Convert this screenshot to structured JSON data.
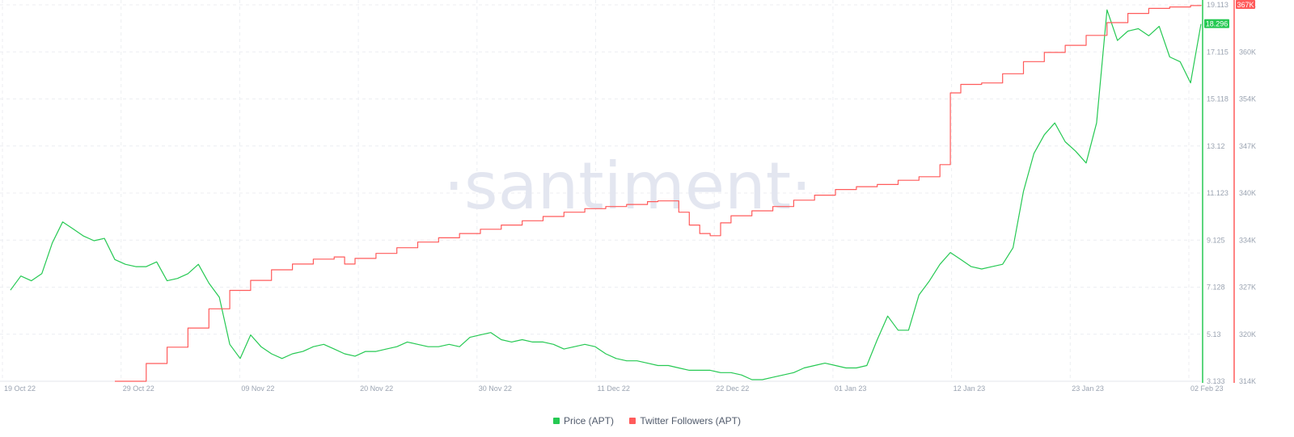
{
  "watermark": "·santiment·",
  "legend": {
    "price_label": "Price (APT)",
    "followers_label": "Twitter Followers (APT)",
    "price_color": "#26c953",
    "followers_color": "#ff5b5b"
  },
  "chart_data": {
    "type": "line",
    "x_ticks": [
      "19 Oct 22",
      "29 Oct 22",
      "09 Nov 22",
      "20 Nov 22",
      "30 Nov 22",
      "11 Dec 22",
      "22 Dec 22",
      "01 Jan 23",
      "12 Jan 23",
      "23 Jan 23",
      "02 Feb 23"
    ],
    "price_axis": {
      "ticks": [
        "19.113",
        "17.115",
        "15.118",
        "13.12",
        "11.123",
        "9.125",
        "7.128",
        "5.13",
        "3.133"
      ],
      "range": [
        3.133,
        19.113
      ],
      "last_value_label": "18.296"
    },
    "followers_axis": {
      "ticks": [
        "367K",
        "360K",
        "354K",
        "347K",
        "340K",
        "334K",
        "327K",
        "320K",
        "314K"
      ],
      "range": [
        314,
        367
      ],
      "last_value_label": "367K"
    },
    "grid": true,
    "legend_position": "bottom-center",
    "series": [
      {
        "name": "Price (APT)",
        "axis": "left",
        "color": "#26c953",
        "points": [
          [
            "2022-10-19",
            7.0
          ],
          [
            "2022-10-20",
            7.6
          ],
          [
            "2022-10-21",
            7.4
          ],
          [
            "2022-10-22",
            7.7
          ],
          [
            "2022-10-23",
            9.0
          ],
          [
            "2022-10-24",
            9.9
          ],
          [
            "2022-10-25",
            9.6
          ],
          [
            "2022-10-26",
            9.3
          ],
          [
            "2022-10-27",
            9.1
          ],
          [
            "2022-10-28",
            9.2
          ],
          [
            "2022-10-29",
            8.3
          ],
          [
            "2022-10-30",
            8.1
          ],
          [
            "2022-10-31",
            8.0
          ],
          [
            "2022-11-01",
            8.0
          ],
          [
            "2022-11-02",
            8.2
          ],
          [
            "2022-11-03",
            7.4
          ],
          [
            "2022-11-04",
            7.5
          ],
          [
            "2022-11-05",
            7.7
          ],
          [
            "2022-11-06",
            8.1
          ],
          [
            "2022-11-07",
            7.3
          ],
          [
            "2022-11-08",
            6.7
          ],
          [
            "2022-11-09",
            4.7
          ],
          [
            "2022-11-10",
            4.1
          ],
          [
            "2022-11-11",
            5.1
          ],
          [
            "2022-11-12",
            4.6
          ],
          [
            "2022-11-13",
            4.3
          ],
          [
            "2022-11-14",
            4.1
          ],
          [
            "2022-11-15",
            4.3
          ],
          [
            "2022-11-16",
            4.4
          ],
          [
            "2022-11-17",
            4.6
          ],
          [
            "2022-11-18",
            4.7
          ],
          [
            "2022-11-19",
            4.5
          ],
          [
            "2022-11-20",
            4.3
          ],
          [
            "2022-11-21",
            4.2
          ],
          [
            "2022-11-22",
            4.4
          ],
          [
            "2022-11-23",
            4.4
          ],
          [
            "2022-11-24",
            4.5
          ],
          [
            "2022-11-25",
            4.6
          ],
          [
            "2022-11-26",
            4.8
          ],
          [
            "2022-11-27",
            4.7
          ],
          [
            "2022-11-28",
            4.6
          ],
          [
            "2022-11-29",
            4.6
          ],
          [
            "2022-11-30",
            4.7
          ],
          [
            "2022-12-01",
            4.6
          ],
          [
            "2022-12-02",
            5.0
          ],
          [
            "2022-12-03",
            5.1
          ],
          [
            "2022-12-04",
            5.2
          ],
          [
            "2022-12-05",
            4.9
          ],
          [
            "2022-12-06",
            4.8
          ],
          [
            "2022-12-07",
            4.9
          ],
          [
            "2022-12-08",
            4.8
          ],
          [
            "2022-12-09",
            4.8
          ],
          [
            "2022-12-10",
            4.7
          ],
          [
            "2022-12-11",
            4.5
          ],
          [
            "2022-12-12",
            4.6
          ],
          [
            "2022-12-13",
            4.7
          ],
          [
            "2022-12-14",
            4.6
          ],
          [
            "2022-12-15",
            4.3
          ],
          [
            "2022-12-16",
            4.1
          ],
          [
            "2022-12-17",
            4.0
          ],
          [
            "2022-12-18",
            4.0
          ],
          [
            "2022-12-19",
            3.9
          ],
          [
            "2022-12-20",
            3.8
          ],
          [
            "2022-12-21",
            3.8
          ],
          [
            "2022-12-22",
            3.7
          ],
          [
            "2022-12-23",
            3.6
          ],
          [
            "2022-12-24",
            3.6
          ],
          [
            "2022-12-25",
            3.6
          ],
          [
            "2022-12-26",
            3.5
          ],
          [
            "2022-12-27",
            3.5
          ],
          [
            "2022-12-28",
            3.4
          ],
          [
            "2022-12-29",
            3.2
          ],
          [
            "2022-12-30",
            3.2
          ],
          [
            "2022-12-31",
            3.3
          ],
          [
            "2023-01-01",
            3.4
          ],
          [
            "2023-01-02",
            3.5
          ],
          [
            "2023-01-03",
            3.7
          ],
          [
            "2023-01-04",
            3.8
          ],
          [
            "2023-01-05",
            3.9
          ],
          [
            "2023-01-06",
            3.8
          ],
          [
            "2023-01-07",
            3.7
          ],
          [
            "2023-01-08",
            3.7
          ],
          [
            "2023-01-09",
            3.8
          ],
          [
            "2023-01-10",
            4.9
          ],
          [
            "2023-01-11",
            5.9
          ],
          [
            "2023-01-12",
            5.3
          ],
          [
            "2023-01-13",
            5.3
          ],
          [
            "2023-01-14",
            6.8
          ],
          [
            "2023-01-15",
            7.4
          ],
          [
            "2023-01-16",
            8.1
          ],
          [
            "2023-01-17",
            8.6
          ],
          [
            "2023-01-18",
            8.3
          ],
          [
            "2023-01-19",
            8.0
          ],
          [
            "2023-01-20",
            7.9
          ],
          [
            "2023-01-21",
            8.0
          ],
          [
            "2023-01-22",
            8.1
          ],
          [
            "2023-01-23",
            8.8
          ],
          [
            "2023-01-24",
            11.2
          ],
          [
            "2023-01-25",
            12.8
          ],
          [
            "2023-01-26",
            13.6
          ],
          [
            "2023-01-27",
            14.1
          ],
          [
            "2023-01-28",
            13.3
          ],
          [
            "2023-01-29",
            12.9
          ],
          [
            "2023-01-30",
            12.4
          ],
          [
            "2023-01-31",
            14.1
          ],
          [
            "2023-02-01",
            18.9
          ],
          [
            "2023-02-02",
            17.6
          ],
          [
            "2023-02-03",
            18.0
          ],
          [
            "2023-02-04",
            18.1
          ],
          [
            "2023-02-05",
            17.8
          ],
          [
            "2023-02-06",
            18.2
          ],
          [
            "2023-02-07",
            16.9
          ],
          [
            "2023-02-08",
            16.7
          ],
          [
            "2023-02-09",
            15.8
          ],
          [
            "2023-02-10",
            18.3
          ]
        ]
      },
      {
        "name": "Twitter Followers (APT)",
        "axis": "right",
        "color": "#ff5b5b",
        "points": [
          [
            "2022-10-29",
            314.0
          ],
          [
            "2022-11-01",
            316.5
          ],
          [
            "2022-11-03",
            318.8
          ],
          [
            "2022-11-05",
            321.5
          ],
          [
            "2022-11-07",
            324.2
          ],
          [
            "2022-11-09",
            326.8
          ],
          [
            "2022-11-11",
            328.2
          ],
          [
            "2022-11-13",
            329.7
          ],
          [
            "2022-11-15",
            330.5
          ],
          [
            "2022-11-17",
            331.2
          ],
          [
            "2022-11-19",
            331.5
          ],
          [
            "2022-11-20",
            330.5
          ],
          [
            "2022-11-21",
            331.3
          ],
          [
            "2022-11-23",
            332.0
          ],
          [
            "2022-11-25",
            332.8
          ],
          [
            "2022-11-27",
            333.6
          ],
          [
            "2022-11-29",
            334.2
          ],
          [
            "2022-12-01",
            334.8
          ],
          [
            "2022-12-03",
            335.4
          ],
          [
            "2022-12-05",
            336.0
          ],
          [
            "2022-12-07",
            336.6
          ],
          [
            "2022-12-09",
            337.2
          ],
          [
            "2022-12-11",
            337.8
          ],
          [
            "2022-12-13",
            338.3
          ],
          [
            "2022-12-15",
            338.6
          ],
          [
            "2022-12-17",
            338.9
          ],
          [
            "2022-12-19",
            339.3
          ],
          [
            "2022-12-20",
            339.4
          ],
          [
            "2022-12-21",
            339.4
          ],
          [
            "2022-12-22",
            337.8
          ],
          [
            "2022-12-23",
            336.0
          ],
          [
            "2022-12-24",
            334.8
          ],
          [
            "2022-12-25",
            334.5
          ],
          [
            "2022-12-26",
            336.3
          ],
          [
            "2022-12-27",
            337.3
          ],
          [
            "2022-12-29",
            338.0
          ],
          [
            "2022-12-31",
            338.6
          ],
          [
            "2023-01-02",
            339.5
          ],
          [
            "2023-01-04",
            340.2
          ],
          [
            "2023-01-06",
            341.0
          ],
          [
            "2023-01-08",
            341.4
          ],
          [
            "2023-01-10",
            341.7
          ],
          [
            "2023-01-12",
            342.3
          ],
          [
            "2023-01-14",
            342.8
          ],
          [
            "2023-01-16",
            344.5
          ],
          [
            "2023-01-17",
            354.6
          ],
          [
            "2023-01-18",
            355.8
          ],
          [
            "2023-01-20",
            356.0
          ],
          [
            "2023-01-22",
            357.3
          ],
          [
            "2023-01-24",
            359.0
          ],
          [
            "2023-01-26",
            360.3
          ],
          [
            "2023-01-28",
            361.3
          ],
          [
            "2023-01-30",
            362.7
          ],
          [
            "2023-02-01",
            364.5
          ],
          [
            "2023-02-03",
            365.8
          ],
          [
            "2023-02-05",
            366.5
          ],
          [
            "2023-02-07",
            366.7
          ],
          [
            "2023-02-09",
            366.9
          ],
          [
            "2023-02-10",
            367.0
          ]
        ]
      }
    ]
  }
}
